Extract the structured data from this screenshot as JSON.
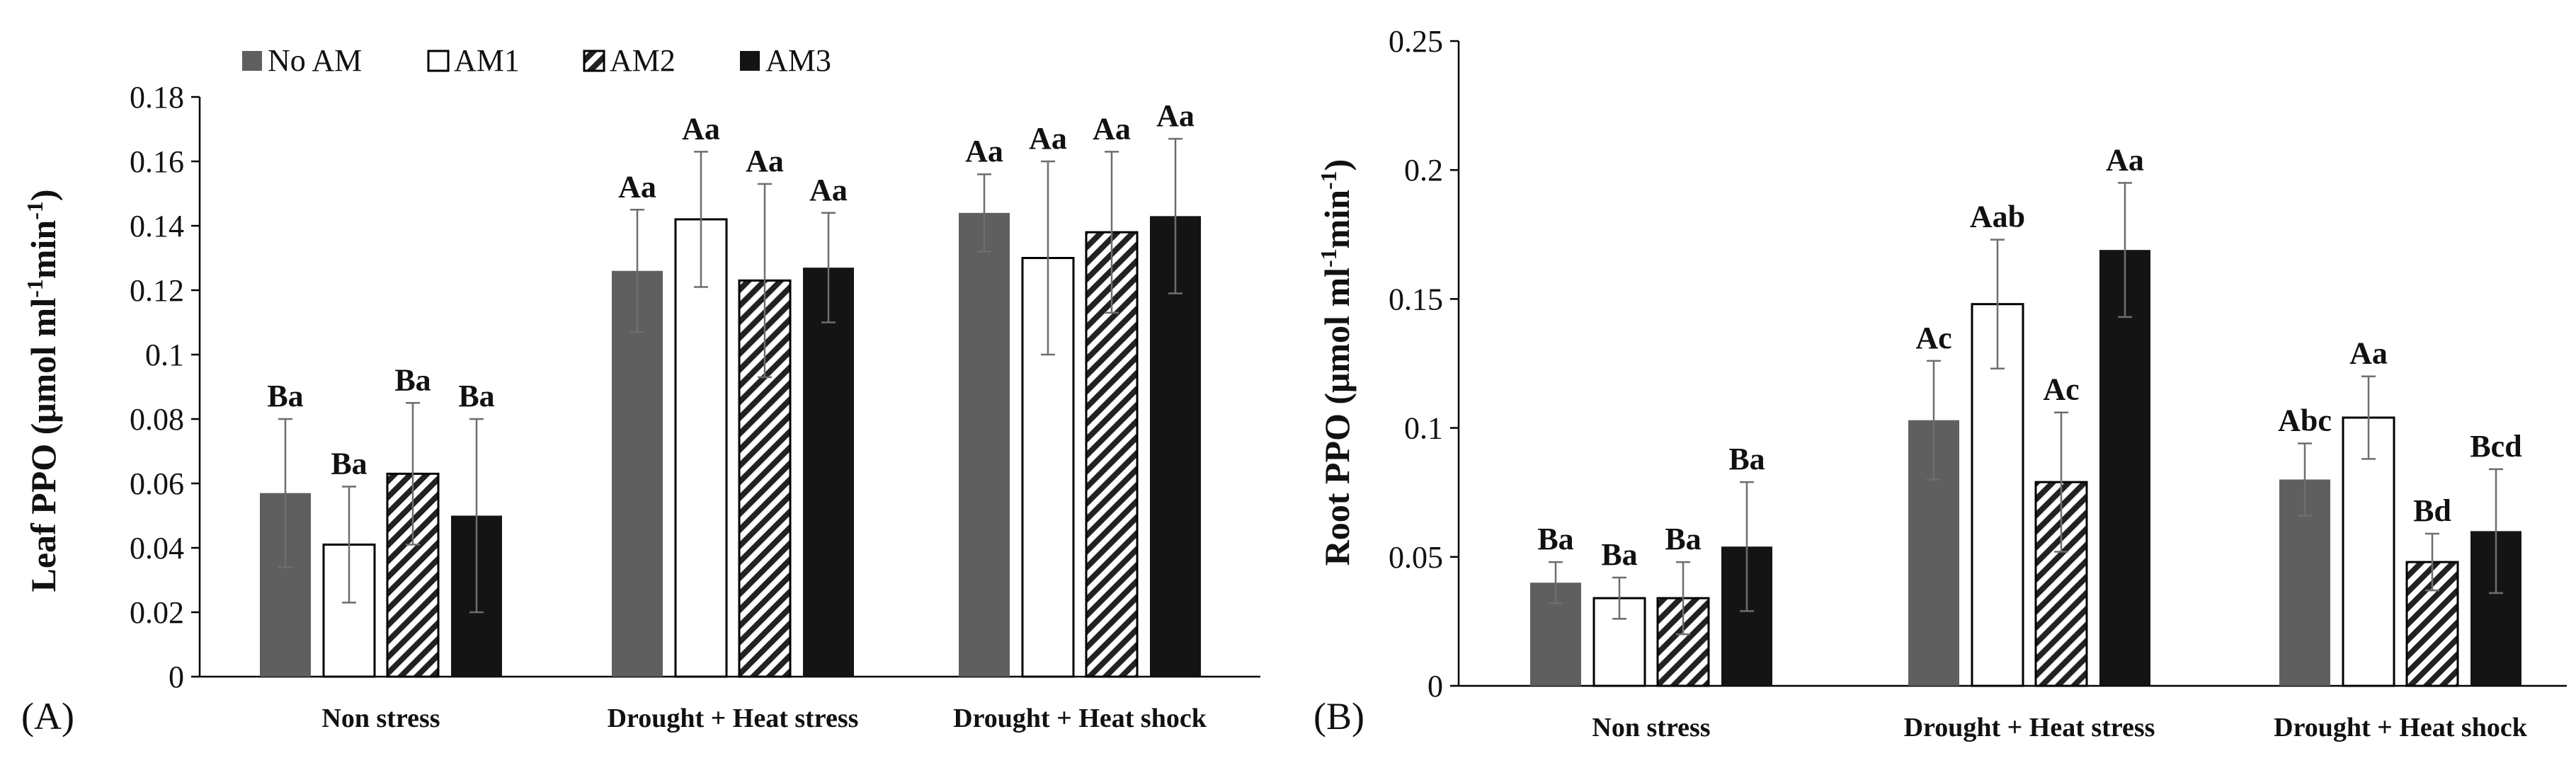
{
  "legend": [
    "No AM",
    "AM1",
    "AM2",
    "AM3"
  ],
  "colors": {
    "No AM": "#5f5f5f",
    "AM1": "#ffffff",
    "AM2": "hatch",
    "AM3": "#141414"
  },
  "chart_data": [
    {
      "type": "bar",
      "panel_label": "(A)",
      "ylabel_main": "Leaf PPO (μmol ml",
      "ylabel_sup1": "-1",
      "ylabel_mid": "min",
      "ylabel_sup2": "-1",
      "ylabel_end": ")",
      "ylim": [
        0,
        0.18
      ],
      "yticks": [
        0,
        0.02,
        0.04,
        0.06,
        0.08,
        0.1,
        0.12,
        0.14,
        0.16,
        0.18
      ],
      "ytick_labels": [
        "0",
        "0.02",
        "0.04",
        "0.06",
        "0.08",
        "0.1",
        "0.12",
        "0.14",
        "0.16",
        "0.18"
      ],
      "categories": [
        "Non stress",
        "Drought + Heat stress",
        "Drought + Heat shock"
      ],
      "series": [
        {
          "name": "No AM",
          "values": [
            0.057,
            0.126,
            0.144
          ],
          "errors": [
            0.023,
            0.019,
            0.012
          ],
          "labels": [
            "Ba",
            "Aa",
            "Aa"
          ]
        },
        {
          "name": "AM1",
          "values": [
            0.041,
            0.142,
            0.13
          ],
          "errors": [
            0.018,
            0.021,
            0.03
          ],
          "labels": [
            "Ba",
            "Aa",
            "Aa"
          ]
        },
        {
          "name": "AM2",
          "values": [
            0.063,
            0.123,
            0.138
          ],
          "errors": [
            0.022,
            0.03,
            0.025
          ],
          "labels": [
            "Ba",
            "Aa",
            "Aa"
          ]
        },
        {
          "name": "AM3",
          "values": [
            0.05,
            0.127,
            0.143
          ],
          "errors": [
            0.03,
            0.017,
            0.024
          ],
          "labels": [
            "Ba",
            "Aa",
            "Aa"
          ]
        }
      ]
    },
    {
      "type": "bar",
      "panel_label": "(B)",
      "ylabel_main": "Root PPO (μmol ml",
      "ylabel_sup1": "-1",
      "ylabel_mid": "min",
      "ylabel_sup2": "-1",
      "ylabel_end": ")",
      "ylim": [
        0,
        0.25
      ],
      "yticks": [
        0,
        0.05,
        0.1,
        0.15,
        0.2,
        0.25
      ],
      "ytick_labels": [
        "0",
        "0.05",
        "0.1",
        "0.15",
        "0.2",
        "0.25"
      ],
      "categories": [
        "Non stress",
        "Drought + Heat stress",
        "Drought + Heat shock"
      ],
      "series": [
        {
          "name": "No AM",
          "values": [
            0.04,
            0.103,
            0.08
          ],
          "errors": [
            0.008,
            0.023,
            0.014
          ],
          "labels": [
            "Ba",
            "Ac",
            "Abc"
          ]
        },
        {
          "name": "AM1",
          "values": [
            0.034,
            0.148,
            0.104
          ],
          "errors": [
            0.008,
            0.025,
            0.016
          ],
          "labels": [
            "Ba",
            "Aab",
            "Aa"
          ]
        },
        {
          "name": "AM2",
          "values": [
            0.034,
            0.079,
            0.048
          ],
          "errors": [
            0.014,
            0.027,
            0.011
          ],
          "labels": [
            "Ba",
            "Ac",
            "Bd"
          ]
        },
        {
          "name": "AM3",
          "values": [
            0.054,
            0.169,
            0.06
          ],
          "errors": [
            0.025,
            0.026,
            0.024
          ],
          "labels": [
            "Ba",
            "Aa",
            "Bcd"
          ]
        }
      ]
    }
  ]
}
